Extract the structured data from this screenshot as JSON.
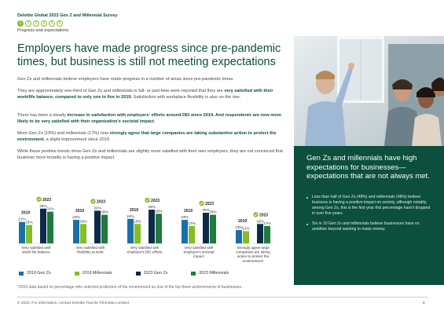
{
  "header": {
    "survey_title": "Deloitte Global 2023 Gen Z and Millennial Survey",
    "steps": [
      "1",
      "2",
      "3",
      "4",
      "5",
      "6"
    ],
    "active_step": 0,
    "section_label": "Progress and expectations"
  },
  "headline": "Employers have made progress since pre-pandemic times, but business is still not meeting expectations",
  "paragraphs": {
    "p1": "Gen Zs and millennials believe employers have made progress in a number of areas since pre-pandemic times.",
    "p2_pre": "They are approximately one-third of Gen Zs and millennials in full- or part-time work reported that they are ",
    "p2_bold": "very satisfied with their work/life balance, compared to only one in five in 2019.",
    "p2_post": " Satisfaction with workplace flexibility is also on the rise.",
    "p3_pre": "There has been a steady ",
    "p3_bold1": "increase in satisfaction with employers' efforts around DEI since 2019. And respondents are now more likely to be very satisfied with their organization's societal impact",
    "p3_post": ".",
    "p4_pre": "More Gen Zs (19%) and millennials (17%) now ",
    "p4_bold": "strongly agree that large companies are taking substantive action to protect the environment",
    "p4_post": ", a slight improvement since 2019.",
    "p5": "While these positive trends show Gen Zs and millennials are slightly more satisfied with their own employers, they are not convinced that business more broadly is having a positive impact."
  },
  "chart_data": {
    "type": "bar",
    "categories": [
      "'Very satisfied with' work/ life balance",
      "Very satisfied with flexibility at work",
      "Very satisfied with employer's DEI efforts",
      "Very satisfied with employer's societal impact",
      "Strongly agree large companies are taking action to protect the environment*"
    ],
    "group_labels": [
      {
        "left": "2019",
        "right": "2023"
      },
      {
        "left": "2019",
        "right": "2023"
      },
      {
        "left": "2019",
        "right": "2023"
      },
      {
        "left": "2019",
        "right": "2023"
      },
      {
        "left": "2019",
        "right": "2023"
      }
    ],
    "series": [
      {
        "name": "2019 Gen Zs",
        "values": [
          21,
          23,
          24,
          23,
          13
        ]
      },
      {
        "name": "2019 Millennials",
        "values": [
          18,
          19,
          19,
          17,
          12
        ]
      },
      {
        "name": "2023 Gen Zs",
        "values": [
          34,
          32,
          33,
          30,
          19
        ]
      },
      {
        "name": "2023 Millennials",
        "values": [
          31,
          28,
          29,
          28,
          17
        ]
      }
    ],
    "colors": [
      "#1a6fa8",
      "#86bc25",
      "#0b2a4a",
      "#1f7a3c"
    ],
    "ylim": [
      0,
      40
    ],
    "legend_position": "bottom"
  },
  "legend": [
    {
      "label": "2019 Gen Zs",
      "color": "#1a6fa8"
    },
    {
      "label": "2019 Millennials",
      "color": "#86bc25"
    },
    {
      "label": "2023 Gen Zs",
      "color": "#0b2a4a"
    },
    {
      "label": "2023 Millennials",
      "color": "#1f7a3c"
    }
  ],
  "footnote": "*2019 data based on percentage who selected protection of the environment as one of the top three achievements of businesses.",
  "panel": {
    "title": "Gen Zs and millennials have high expectations for businesses—expectations that are not always met.",
    "bullets": [
      "Less than half of Gen Zs (48%) and millennials (48%) believe business is having a positive impact on society, although notably, among Gen Zs, this is the first year this percentage hasn't dropped in over five years.",
      "Six in 10 Gen Zs and millennials believe businesses have no ambition beyond wanting to make money."
    ]
  },
  "footer": {
    "copyright": "© 2023. For information, contact Deloitte Touche Tohmatsu Limited.",
    "page_number": "6"
  }
}
